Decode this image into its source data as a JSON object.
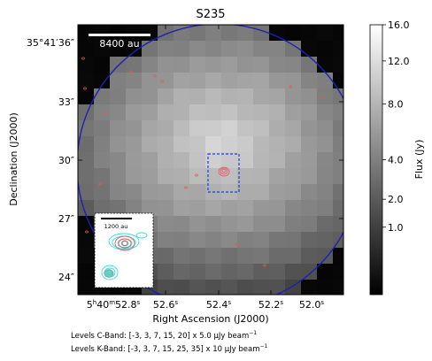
{
  "chart_data": {
    "type": "heatmap",
    "title": "S235",
    "xlabel": "Right Ascension (J2000)",
    "ylabel": "Declination (J2000)",
    "x_ticks": [
      {
        "h": "5",
        "m": "40",
        "s": "52.8",
        "mark": "s",
        "full": true
      },
      {
        "s": "52.6",
        "mark": "s"
      },
      {
        "s": "52.4",
        "mark": "s"
      },
      {
        "s": "52.2",
        "mark": "s"
      },
      {
        "s": "52.0",
        "mark": "s"
      }
    ],
    "y_ticks": [
      "35°41′36″",
      "33″",
      "30″",
      "27″",
      "24″"
    ],
    "scalebar_label": "8400 au",
    "inset_scalebar_label": "1200 au",
    "colorbar": {
      "label": "Flux (Jy)",
      "ticks": [
        "16.0",
        "12.0",
        "8.0",
        "4.0",
        "2.0",
        "1.0"
      ],
      "tick_values": [
        16.0,
        12.0,
        8.0,
        4.0,
        2.0,
        1.0
      ],
      "scale": "sqrt",
      "range": [
        0,
        16.0
      ]
    },
    "beam_outline_color": "#1f1fb4",
    "box_color": "#1f3fd0",
    "contour_colors": {
      "c_band": "#e05a5a",
      "k_band": "#33dddd"
    },
    "levels": [
      {
        "prefix": "Levels C-Band: [-3, 3, 7, 15, 20] x 5.0 ",
        "mu": "μ",
        "unit": "Jy beam",
        "exp": "−1"
      },
      {
        "prefix": "Levels K-Band: [-3, 3, 7, 15, 25, 35] x 10 ",
        "mu": "μ",
        "unit": "Jy beam",
        "exp": "−1"
      }
    ]
  }
}
